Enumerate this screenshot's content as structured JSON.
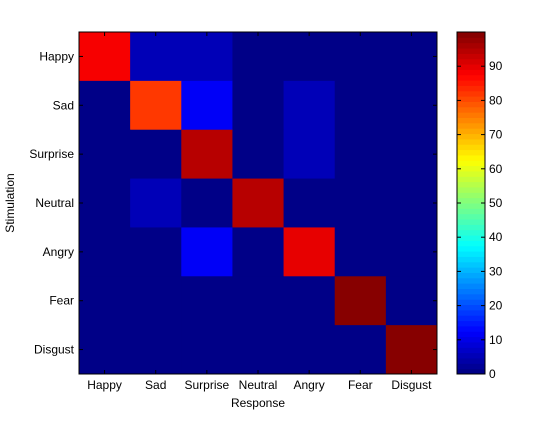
{
  "chart_data": {
    "type": "heatmap",
    "title": "",
    "xlabel": "Response",
    "ylabel": "Stimulation",
    "x_categories": [
      "Happy",
      "Sad",
      "Surprise",
      "Neutral",
      "Angry",
      "Fear",
      "Disgust"
    ],
    "y_categories": [
      "Happy",
      "Sad",
      "Surprise",
      "Neutral",
      "Angry",
      "Fear",
      "Disgust"
    ],
    "values": [
      [
        88,
        6,
        6,
        0,
        0,
        0,
        0
      ],
      [
        0,
        82,
        12,
        0,
        6,
        0,
        0
      ],
      [
        0,
        0,
        95,
        0,
        6,
        0,
        0
      ],
      [
        0,
        6,
        0,
        94,
        0,
        0,
        0
      ],
      [
        0,
        0,
        12,
        0,
        90,
        0,
        0
      ],
      [
        0,
        0,
        0,
        0,
        0,
        100,
        0
      ],
      [
        0,
        0,
        0,
        0,
        0,
        0,
        100
      ]
    ],
    "colormap": "jet",
    "clim": [
      0,
      100
    ],
    "colorbar": {
      "ticks": [
        0,
        10,
        20,
        30,
        40,
        50,
        60,
        70,
        80,
        90
      ],
      "tick_labels": [
        "0",
        "10",
        "20",
        "30",
        "40",
        "50",
        "60",
        "70",
        "80",
        "90"
      ]
    },
    "grid": false,
    "legend": "colorbar-right"
  }
}
